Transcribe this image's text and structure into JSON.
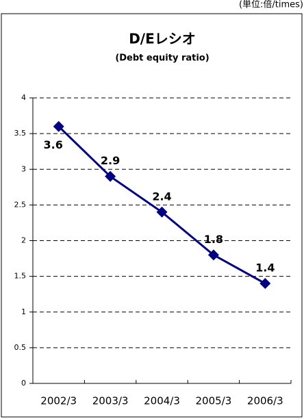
{
  "chart_data": {
    "type": "line",
    "title": "D/Eレシオ",
    "subtitle": "(Debt equity ratio)",
    "unit": "(単位:倍/times)",
    "categories": [
      "2002/3",
      "2003/3",
      "2004/3",
      "2005/3",
      "2006/3"
    ],
    "series": [
      {
        "name": "D/E ratio",
        "color": "#000080",
        "values": [
          3.6,
          2.9,
          2.4,
          1.8,
          1.4
        ]
      }
    ],
    "ylim": [
      0,
      4
    ],
    "yticks": [
      0,
      0.5,
      1,
      1.5,
      2,
      2.5,
      3,
      3.5,
      4
    ],
    "grid": true
  }
}
